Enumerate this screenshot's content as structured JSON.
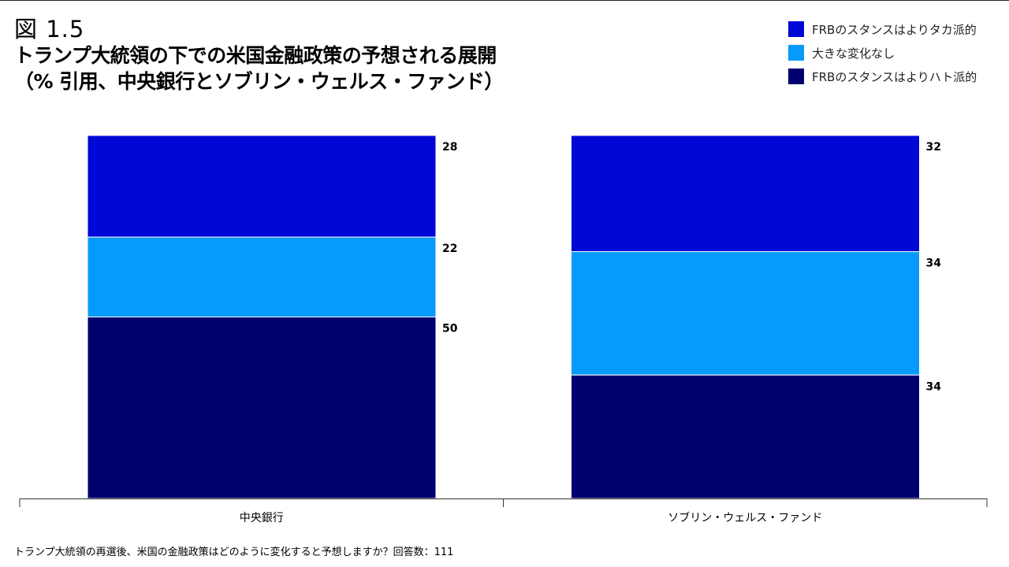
{
  "figure": {
    "label": "図 1.5",
    "title_line1": "トランプ大統領の下での米国金融政策の予想される展開",
    "title_line2": "（% 引用、中央銀行とソブリン・ウェルス・ファンド）"
  },
  "footnote": "トランプ大統領の再選後、米国の金融政策はどのように変化すると予想しますか？回答数：111",
  "chart_data": {
    "type": "bar",
    "stacked": true,
    "categories": [
      "中央銀行",
      "ソブリン・ウェルス・ファンド"
    ],
    "series": [
      {
        "name": "FRBのスタンスはよりタカ派的",
        "values": [
          28,
          32
        ],
        "color": "#0008D6"
      },
      {
        "name": "大きな変化なし",
        "values": [
          22,
          34
        ],
        "color": "#069BFA"
      },
      {
        "name": "FRBのスタンスはよりハト派的",
        "values": [
          50,
          34
        ],
        "color": "#00006F"
      }
    ],
    "ylim": [
      0,
      100
    ],
    "grid": false,
    "legend_position": "top-right"
  }
}
